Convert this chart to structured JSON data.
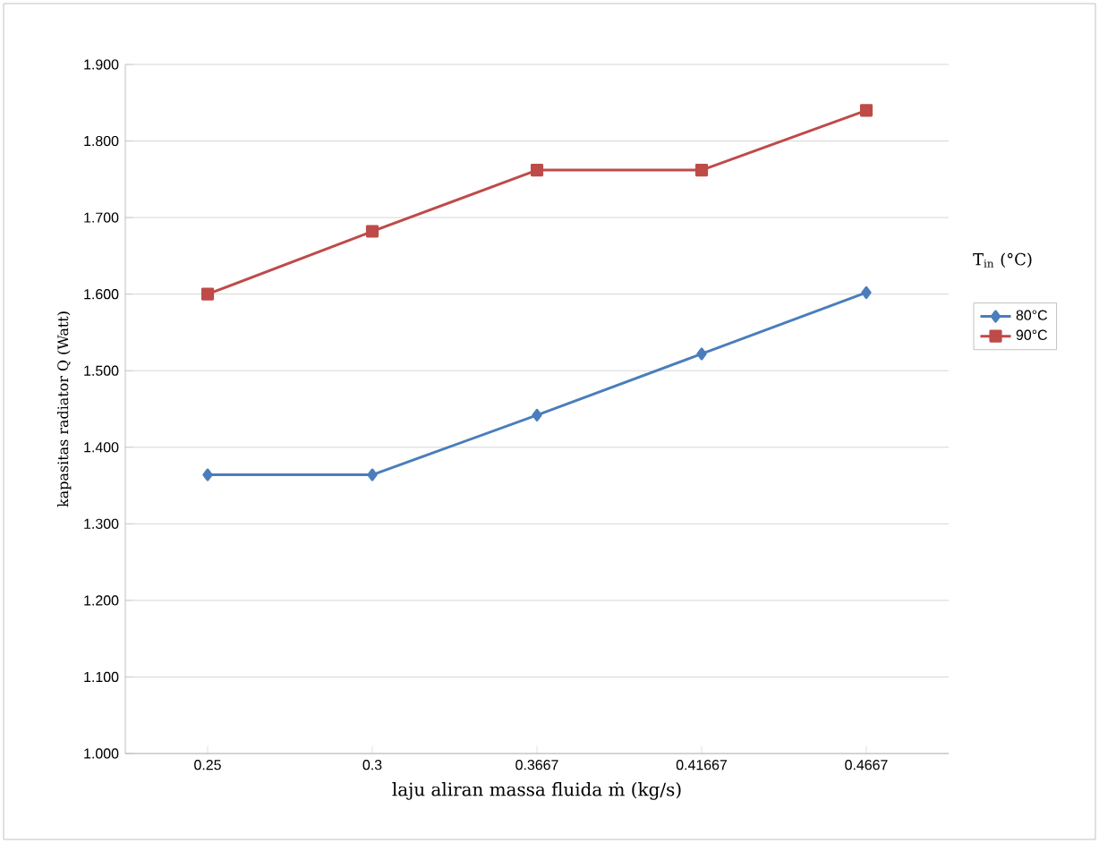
{
  "chart_data": {
    "type": "line",
    "xlabel": "laju aliran massa fluida ṁ (kg/s)",
    "ylabel": "kapasitas radiator Q (Watt)",
    "legend_title": "T$_{in}$ (°C)",
    "categories": [
      "0.25",
      "0.3",
      "0.3667",
      "0.41667",
      "0.4667"
    ],
    "series": [
      {
        "name": "80°C",
        "color": "#4a7ebb",
        "marker": "diamond",
        "values": [
          1.364,
          1.364,
          1.442,
          1.522,
          1.602
        ]
      },
      {
        "name": "90°C",
        "color": "#be4b48",
        "marker": "square",
        "values": [
          1.6,
          1.682,
          1.762,
          1.762,
          1.84
        ]
      }
    ],
    "ylim": [
      1.0,
      1.9
    ],
    "yticks": [
      {
        "value": 1.0,
        "label": "1.000"
      },
      {
        "value": 1.1,
        "label": "1.100"
      },
      {
        "value": 1.2,
        "label": "1.200"
      },
      {
        "value": 1.3,
        "label": "1.300"
      },
      {
        "value": 1.4,
        "label": "1.400"
      },
      {
        "value": 1.5,
        "label": "1.500"
      },
      {
        "value": 1.6,
        "label": "1.600"
      },
      {
        "value": 1.7,
        "label": "1.700"
      },
      {
        "value": 1.8,
        "label": "1.800"
      },
      {
        "value": 1.9,
        "label": "1.900"
      }
    ],
    "grid": "y",
    "legend": "right"
  }
}
